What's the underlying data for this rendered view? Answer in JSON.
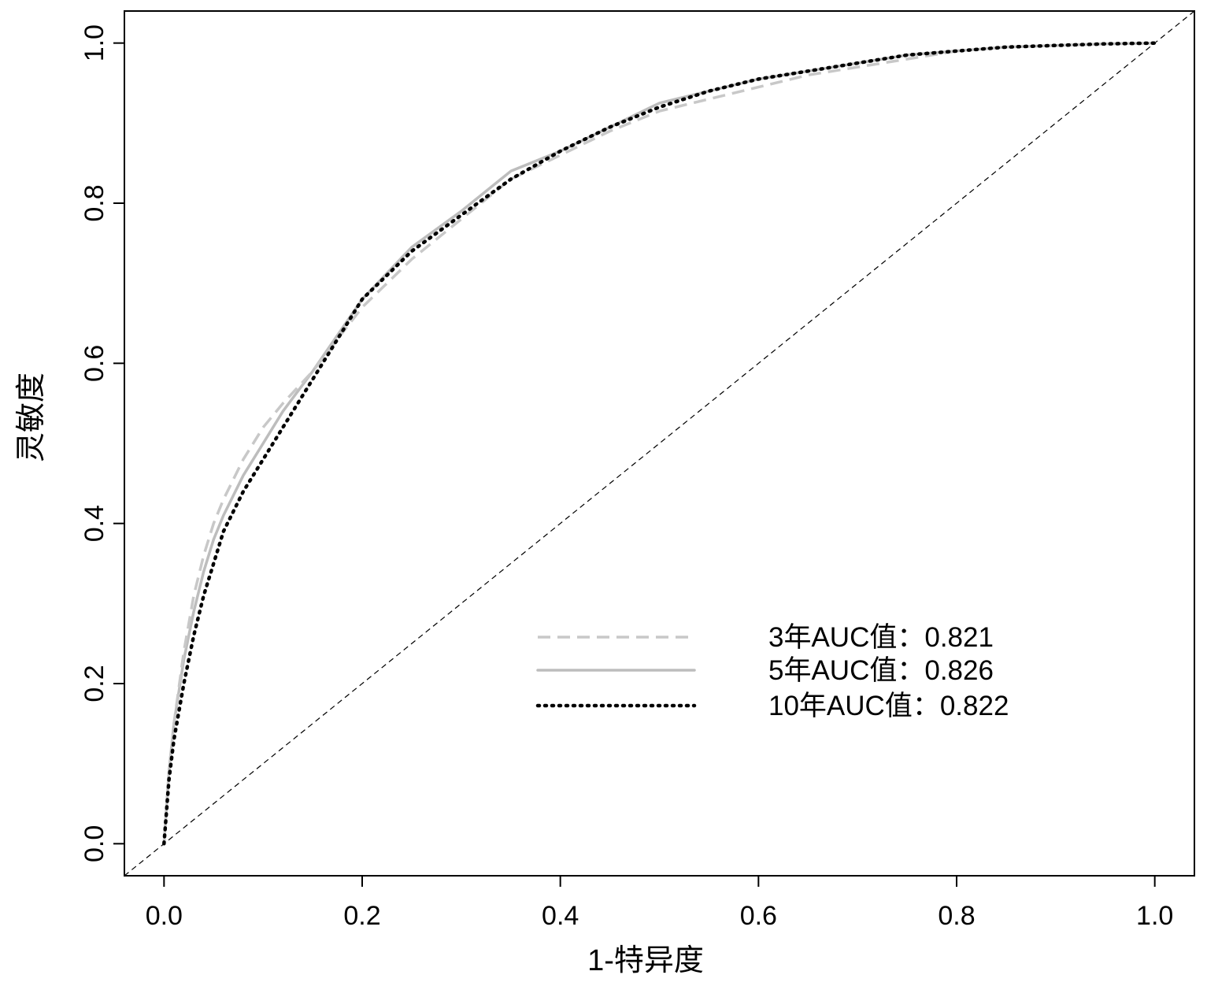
{
  "chart_data": {
    "type": "line",
    "title": "",
    "xlabel": "1-特异度",
    "ylabel": "灵敏度",
    "xlim": [
      -0.04,
      1.04
    ],
    "ylim": [
      -0.04,
      1.04
    ],
    "xticks": [
      "0.0",
      "0.2",
      "0.4",
      "0.6",
      "0.8",
      "1.0"
    ],
    "yticks": [
      "0.0",
      "0.2",
      "0.4",
      "0.6",
      "0.8",
      "1.0"
    ],
    "grid": false,
    "legend_position": "bottom-right",
    "diagonal_reference": true,
    "series": [
      {
        "name": "3年AUC值：0.821",
        "style": "dashed",
        "color": "#c8c8c8",
        "x": [
          0,
          0.005,
          0.01,
          0.02,
          0.03,
          0.04,
          0.05,
          0.06,
          0.08,
          0.1,
          0.12,
          0.15,
          0.2,
          0.25,
          0.3,
          0.35,
          0.4,
          0.45,
          0.5,
          0.55,
          0.6,
          0.65,
          0.7,
          0.75,
          0.8,
          0.85,
          0.9,
          0.95,
          1.0
        ],
        "y": [
          0,
          0.09,
          0.15,
          0.24,
          0.31,
          0.36,
          0.4,
          0.43,
          0.48,
          0.52,
          0.55,
          0.59,
          0.67,
          0.73,
          0.78,
          0.83,
          0.86,
          0.89,
          0.915,
          0.93,
          0.945,
          0.96,
          0.97,
          0.98,
          0.99,
          0.995,
          0.997,
          0.999,
          1.0
        ]
      },
      {
        "name": "5年AUC值：0.826",
        "style": "solid",
        "color": "#bdbdbd",
        "x": [
          0,
          0.005,
          0.01,
          0.02,
          0.03,
          0.04,
          0.05,
          0.06,
          0.08,
          0.1,
          0.12,
          0.15,
          0.2,
          0.25,
          0.3,
          0.35,
          0.4,
          0.45,
          0.5,
          0.55,
          0.6,
          0.65,
          0.7,
          0.75,
          0.8,
          0.85,
          0.9,
          0.95,
          1.0
        ],
        "y": [
          0,
          0.09,
          0.15,
          0.23,
          0.29,
          0.34,
          0.38,
          0.41,
          0.46,
          0.5,
          0.54,
          0.59,
          0.68,
          0.745,
          0.79,
          0.84,
          0.865,
          0.895,
          0.925,
          0.94,
          0.955,
          0.965,
          0.975,
          0.985,
          0.99,
          0.995,
          0.997,
          0.999,
          1.0
        ]
      },
      {
        "name": "10年AUC值：0.822",
        "style": "dotted",
        "color": "#000000",
        "x": [
          0,
          0.005,
          0.01,
          0.02,
          0.03,
          0.04,
          0.05,
          0.06,
          0.08,
          0.1,
          0.12,
          0.15,
          0.2,
          0.25,
          0.3,
          0.35,
          0.4,
          0.45,
          0.5,
          0.55,
          0.6,
          0.65,
          0.7,
          0.75,
          0.8,
          0.85,
          0.9,
          0.95,
          1.0
        ],
        "y": [
          0,
          0.08,
          0.13,
          0.2,
          0.26,
          0.31,
          0.35,
          0.39,
          0.44,
          0.48,
          0.52,
          0.58,
          0.68,
          0.74,
          0.785,
          0.83,
          0.865,
          0.895,
          0.92,
          0.94,
          0.955,
          0.965,
          0.975,
          0.985,
          0.99,
          0.995,
          0.997,
          0.999,
          1.0
        ]
      }
    ]
  }
}
